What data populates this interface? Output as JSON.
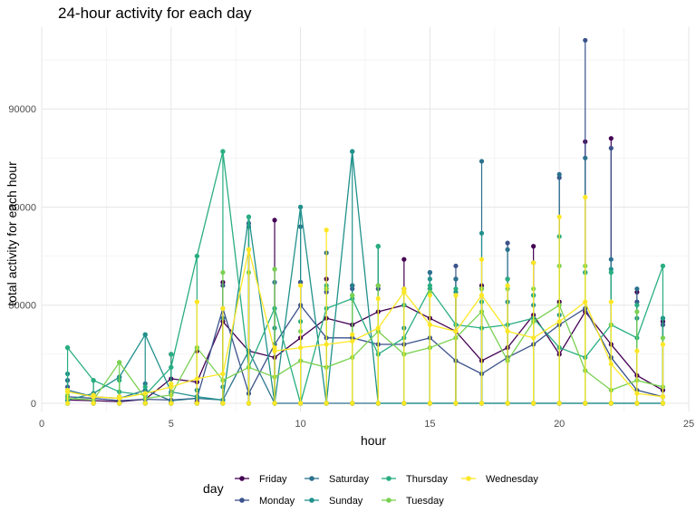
{
  "chart_data": {
    "type": "line",
    "title": "24-hour activity for each day",
    "xlabel": "hour",
    "ylabel": "total activity for each hour",
    "xlim": [
      0,
      25
    ],
    "ylim": [
      -2500,
      115000
    ],
    "x_ticks": [
      0,
      5,
      10,
      15,
      20,
      25
    ],
    "x_tick_labels": [
      "0",
      "5",
      "10",
      "15",
      "20",
      "25"
    ],
    "y_ticks": [
      0,
      30000,
      60000,
      90000
    ],
    "y_tick_labels": [
      "0",
      "30000",
      "60000",
      "90000"
    ],
    "grid": true,
    "legend": {
      "title": "day",
      "position": "bottom"
    },
    "x": [
      1,
      2,
      3,
      4,
      5,
      6,
      7,
      8,
      9,
      10,
      11,
      12,
      13,
      14,
      15,
      16,
      17,
      18,
      19,
      20,
      21,
      22,
      23,
      24
    ],
    "series": [
      {
        "name": "Friday",
        "color": "#440154",
        "values": [
          1000,
          800,
          500,
          1200,
          7500,
          6500,
          25000,
          16000,
          14000,
          20000,
          26000,
          24000,
          28000,
          30000,
          26000,
          22000,
          13000,
          17000,
          27000,
          15000,
          28000,
          18000,
          8500,
          4000
        ],
        "range_low": [
          0,
          0,
          0,
          0,
          500,
          500,
          0,
          0,
          0,
          0,
          0,
          0,
          0,
          0,
          0,
          0,
          0,
          0,
          0,
          0,
          0,
          0,
          0,
          0
        ],
        "range_high": [
          7000,
          3000,
          2000,
          3000,
          15000,
          16000,
          37000,
          47000,
          56000,
          37000,
          38000,
          36000,
          36000,
          44000,
          35000,
          38000,
          36000,
          38000,
          48000,
          31000,
          80000,
          81000,
          34000,
          25000
        ]
      },
      {
        "name": "Monday",
        "color": "#3b528b",
        "values": [
          2000,
          1500,
          800,
          1200,
          1000,
          1500,
          29000,
          3000,
          18000,
          30000,
          20000,
          20000,
          18000,
          18000,
          20000,
          13000,
          9000,
          14000,
          18000,
          24000,
          29000,
          14000,
          4000,
          2000
        ],
        "range_low": [
          0,
          0,
          0,
          0,
          0,
          0,
          0,
          0,
          0,
          0,
          0,
          0,
          0,
          0,
          0,
          0,
          0,
          0,
          0,
          0,
          0,
          0,
          0,
          0
        ],
        "range_high": [
          5000,
          2500,
          1500,
          3000,
          3000,
          4000,
          36000,
          55000,
          41000,
          37000,
          34000,
          35000,
          35000,
          35000,
          40000,
          42000,
          35000,
          49000,
          43000,
          69000,
          111000,
          78000,
          31000,
          24000
        ]
      },
      {
        "name": "Saturday",
        "color": "#2c728e",
        "values": [
          4000,
          2000,
          1500,
          4000,
          800,
          1500,
          1000,
          16000,
          0,
          0,
          0,
          0,
          0,
          0,
          0,
          0,
          0,
          0,
          0,
          0,
          0,
          0,
          0,
          0
        ],
        "range_low": [
          0,
          0,
          0,
          0,
          0,
          0,
          0,
          0,
          0,
          0,
          0,
          0,
          0,
          0,
          0,
          0,
          0,
          0,
          0,
          0,
          0,
          0,
          0,
          0
        ],
        "range_high": [
          7000,
          3000,
          8000,
          6000,
          5000,
          2000,
          26000,
          54000,
          37000,
          54000,
          46000,
          36000,
          48000,
          35000,
          40000,
          38000,
          74000,
          47000,
          33000,
          70000,
          75000,
          44000,
          35000,
          26000
        ]
      },
      {
        "name": "Sunday",
        "color": "#21918c",
        "values": [
          1000,
          3000,
          8000,
          21000,
          3500,
          2000,
          1000,
          57000,
          0,
          60000,
          0,
          77000,
          0,
          0,
          0,
          0,
          0,
          0,
          0,
          0,
          0,
          0,
          0,
          0
        ],
        "range_low": [
          0,
          0,
          0,
          0,
          0,
          0,
          0,
          0,
          0,
          0,
          0,
          0,
          0,
          0,
          0,
          0,
          0,
          0,
          0,
          0,
          0,
          0,
          0,
          0
        ],
        "range_high": [
          9000,
          7000,
          8000,
          21000,
          11000,
          4000,
          5000,
          57000,
          23000,
          60000,
          35000,
          77000,
          48000,
          23000,
          38000,
          34000,
          52000,
          31000,
          30000,
          27000,
          40000,
          41000,
          26000,
          26000
        ]
      },
      {
        "name": "Thursday",
        "color": "#28ae80",
        "values": [
          17000,
          7000,
          3500,
          2500,
          11000,
          45000,
          77000,
          11000,
          29000,
          0,
          29000,
          32000,
          15000,
          20000,
          35000,
          24000,
          23000,
          24000,
          26000,
          17000,
          14000,
          24000,
          20000,
          42000
        ],
        "range_low": [
          0,
          0,
          0,
          0,
          0,
          0,
          0,
          0,
          0,
          0,
          0,
          0,
          0,
          0,
          0,
          0,
          0,
          0,
          0,
          0,
          0,
          0,
          0,
          0
        ],
        "range_high": [
          17000,
          7000,
          7000,
          5000,
          15000,
          45000,
          77000,
          57000,
          29000,
          25000,
          36000,
          33000,
          48000,
          30000,
          36000,
          35000,
          31000,
          38000,
          33000,
          51000,
          40000,
          40000,
          30000,
          42000
        ]
      },
      {
        "name": "Tuesday",
        "color": "#7ad151",
        "values": [
          1500,
          1000,
          12500,
          1500,
          2500,
          17000,
          7000,
          11000,
          8000,
          13000,
          11000,
          14000,
          22000,
          15000,
          17000,
          20000,
          28000,
          13000,
          25000,
          30000,
          10000,
          4000,
          7000,
          5000
        ],
        "range_low": [
          0,
          0,
          0,
          0,
          0,
          0,
          0,
          0,
          0,
          0,
          0,
          0,
          0,
          0,
          0,
          0,
          0,
          0,
          0,
          0,
          0,
          0,
          0,
          0
        ],
        "range_high": [
          2500,
          2000,
          12500,
          3000,
          5000,
          17000,
          40000,
          40000,
          41000,
          22000,
          35000,
          33000,
          36000,
          34000,
          34000,
          33000,
          35000,
          35000,
          35000,
          42000,
          42000,
          24000,
          28000,
          20000
        ]
      },
      {
        "name": "Wednesday",
        "color": "#fde725",
        "values": [
          3500,
          2000,
          1500,
          3000,
          5000,
          7500,
          9000,
          47000,
          16000,
          17000,
          18000,
          19000,
          23000,
          34000,
          24000,
          22000,
          33000,
          22000,
          20000,
          25000,
          31000,
          12000,
          3000,
          2000
        ],
        "range_low": [
          0,
          0,
          0,
          0,
          0,
          0,
          0,
          0,
          0,
          0,
          0,
          0,
          0,
          0,
          0,
          0,
          0,
          0,
          0,
          0,
          0,
          0,
          0,
          0
        ],
        "range_high": [
          4000,
          2500,
          2000,
          3000,
          6000,
          31000,
          29000,
          47000,
          17000,
          36000,
          53000,
          21000,
          32000,
          35000,
          33000,
          33000,
          44000,
          36000,
          43000,
          57000,
          63000,
          31000,
          16000,
          18000
        ]
      }
    ]
  }
}
